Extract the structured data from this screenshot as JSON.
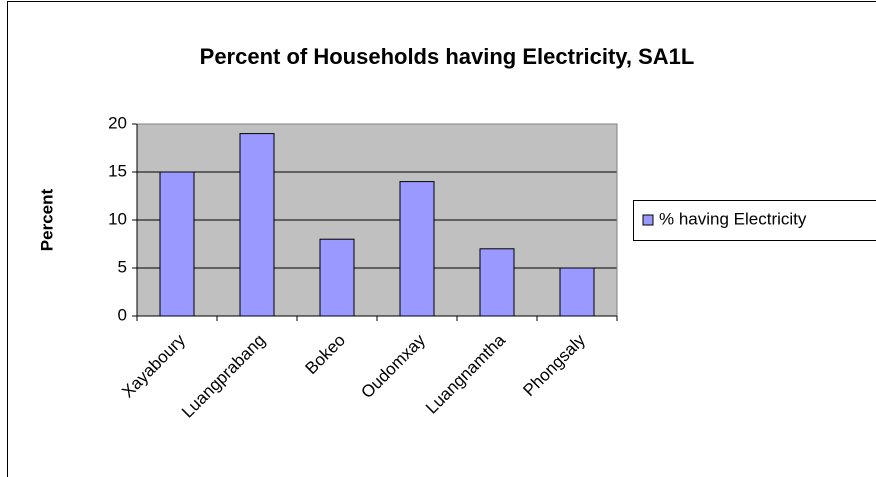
{
  "chart_data": {
    "type": "bar",
    "title": "Percent of Households having Electricity, SA1L",
    "y_label": "Percent",
    "categories": [
      "Xayaboury",
      "Luangprabang",
      "Bokeo",
      "Oudomxay",
      "Luangnamtha",
      "Phongsaly"
    ],
    "series": [
      {
        "name": "% having Electricity",
        "color": "#9999ff",
        "values": [
          15,
          19,
          8,
          14,
          7,
          5
        ]
      }
    ],
    "ylim": [
      0,
      20
    ],
    "yticks": [
      0,
      5,
      10,
      15,
      20
    ],
    "grid": true,
    "legend": "right"
  }
}
